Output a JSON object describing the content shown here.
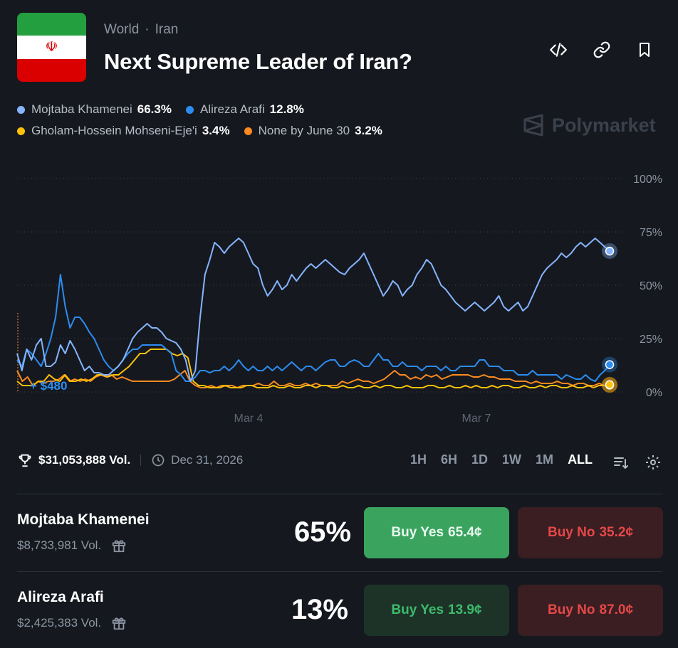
{
  "header": {
    "breadcrumb": [
      "World",
      "Iran"
    ],
    "title": "Next Supreme Leader of Iran?",
    "icons": [
      "embed-icon",
      "link-icon",
      "bookmark-icon"
    ],
    "brand": "Polymarket"
  },
  "legend": [
    {
      "name": "Mojtaba Khamenei",
      "pct": "66.3%",
      "color": "#86b4ff"
    },
    {
      "name": "Alireza Arafi",
      "pct": "12.8%",
      "color": "#2d8cf0"
    },
    {
      "name": "Gholam-Hossein Mohseni-Eje'i",
      "pct": "3.4%",
      "color": "#ffc10a"
    },
    {
      "name": "None by June 30",
      "pct": "3.2%",
      "color": "#ff8a1f"
    }
  ],
  "chart_data": {
    "type": "line",
    "y_ticks": [
      "100%",
      "75%",
      "50%",
      "25%",
      "0%"
    ],
    "x_ticks": [
      "Mar 4",
      "Mar 7"
    ],
    "ylim": [
      0,
      100
    ],
    "annotation": "+ $480",
    "grid": true,
    "series": [
      {
        "name": "Mojtaba Khamenei",
        "color": "#86b4ff",
        "values": [
          18,
          10,
          20,
          15,
          22,
          25,
          12,
          12,
          14,
          22,
          18,
          24,
          20,
          15,
          10,
          12,
          9,
          9,
          8,
          8,
          10,
          12,
          15,
          20,
          25,
          28,
          30,
          32,
          30,
          30,
          28,
          25,
          24,
          23,
          20,
          15,
          5,
          10,
          35,
          55,
          62,
          70,
          68,
          65,
          68,
          70,
          72,
          70,
          65,
          60,
          58,
          50,
          45,
          48,
          52,
          48,
          50,
          55,
          52,
          55,
          58,
          60,
          58,
          60,
          62,
          60,
          58,
          56,
          55,
          58,
          60,
          62,
          65,
          60,
          55,
          50,
          45,
          48,
          52,
          50,
          45,
          48,
          50,
          55,
          58,
          62,
          60,
          55,
          50,
          48,
          45,
          42,
          40,
          38,
          40,
          42,
          40,
          38,
          40,
          42,
          45,
          40,
          38,
          40,
          42,
          38,
          40,
          45,
          50,
          55,
          58,
          60,
          62,
          65,
          63,
          65,
          68,
          70,
          68,
          70,
          72,
          70,
          68,
          66
        ]
      },
      {
        "name": "Alireza Arafi",
        "color": "#2d8cf0",
        "values": [
          15,
          12,
          20,
          18,
          15,
          12,
          18,
          25,
          35,
          55,
          40,
          30,
          35,
          35,
          32,
          28,
          25,
          20,
          15,
          12,
          10,
          12,
          15,
          18,
          20,
          20,
          22,
          22,
          22,
          22,
          22,
          20,
          18,
          10,
          8,
          5,
          5,
          7,
          10,
          10,
          9,
          10,
          10,
          12,
          10,
          12,
          15,
          12,
          10,
          12,
          10,
          10,
          12,
          10,
          12,
          10,
          12,
          14,
          12,
          10,
          12,
          12,
          10,
          12,
          14,
          15,
          15,
          12,
          12,
          14,
          15,
          14,
          12,
          12,
          15,
          18,
          15,
          15,
          12,
          12,
          14,
          12,
          12,
          12,
          10,
          12,
          12,
          12,
          10,
          12,
          10,
          10,
          12,
          12,
          12,
          12,
          15,
          15,
          12,
          12,
          12,
          10,
          10,
          10,
          8,
          8,
          8,
          10,
          8,
          8,
          8,
          8,
          8,
          6,
          8,
          7,
          6,
          6,
          8,
          6,
          5,
          8,
          10,
          12.8
        ]
      },
      {
        "name": "Gholam-Hossein Mohseni-Eje'i",
        "color": "#ffc10a",
        "values": [
          5,
          3,
          3,
          3,
          5,
          5,
          8,
          6,
          5,
          8,
          5,
          5,
          6,
          5,
          6,
          8,
          8,
          7,
          8,
          8,
          10,
          12,
          15,
          18,
          18,
          20,
          20,
          20,
          20,
          18,
          17,
          18,
          16,
          5,
          3,
          3,
          2,
          2,
          2,
          3,
          2,
          2,
          2,
          3,
          3,
          2,
          2,
          2,
          3,
          2,
          2,
          3,
          2,
          2,
          3,
          3,
          2,
          3,
          3,
          2,
          2,
          3,
          2,
          2,
          3,
          2,
          2,
          3,
          2,
          3,
          3,
          2,
          2,
          3,
          2,
          2,
          2,
          3,
          3,
          2,
          2,
          3,
          2,
          2,
          3,
          2,
          3,
          2,
          2,
          3,
          2,
          3,
          3,
          2,
          2,
          3,
          2,
          2,
          3,
          2,
          3,
          3,
          2,
          2,
          3,
          2,
          2,
          3,
          2,
          3,
          3,
          3.4
        ]
      },
      {
        "name": "None by June 30",
        "color": "#ff8a1f",
        "values": [
          10,
          5,
          7,
          3,
          5,
          4,
          5,
          5,
          6,
          8,
          5,
          6,
          5,
          6,
          5,
          7,
          8,
          7,
          8,
          6,
          7,
          6,
          5,
          5,
          5,
          5,
          5,
          5,
          5,
          5,
          6,
          8,
          10,
          5,
          3,
          2,
          2,
          3,
          2,
          3,
          3,
          3,
          2,
          3,
          3,
          3,
          4,
          3,
          3,
          5,
          3,
          3,
          4,
          3,
          3,
          4,
          3,
          4,
          3,
          3,
          3,
          3,
          5,
          4,
          5,
          6,
          5,
          5,
          4,
          5,
          6,
          8,
          10,
          8,
          8,
          6,
          7,
          6,
          8,
          7,
          8,
          6,
          7,
          8,
          8,
          8,
          8,
          7,
          7,
          8,
          7,
          7,
          6,
          6,
          6,
          5,
          5,
          5,
          4,
          5,
          4,
          4,
          4,
          5,
          4,
          4,
          3,
          4,
          4,
          3,
          3,
          4,
          3,
          3.2
        ]
      }
    ]
  },
  "stats": {
    "volume": "$31,053,888 Vol.",
    "end_date": "Dec 31, 2026",
    "ranges": [
      "1H",
      "6H",
      "1D",
      "1W",
      "1M",
      "ALL"
    ],
    "active_range": "ALL"
  },
  "outcomes": [
    {
      "name": "Mojtaba Khamenei",
      "volume": "$8,733,981 Vol.",
      "pct": "65%",
      "yes_label": "Buy Yes",
      "yes_price": "65.4¢",
      "no_label": "Buy No",
      "no_price": "35.2¢"
    },
    {
      "name": "Alireza Arafi",
      "volume": "$2,425,383 Vol.",
      "pct": "13%",
      "yes_label": "Buy Yes",
      "yes_price": "13.9¢",
      "no_label": "Buy No",
      "no_price": "87.0¢"
    }
  ]
}
